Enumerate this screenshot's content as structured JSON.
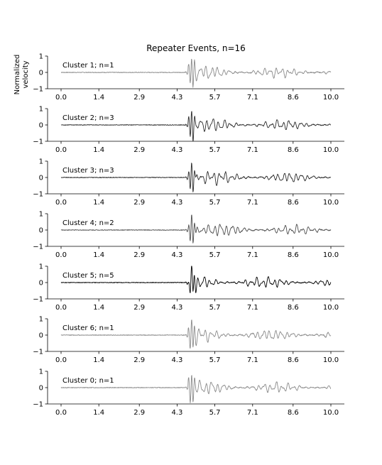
{
  "chart_data": {
    "type": "line",
    "title": "Repeater Events, n=16",
    "ylabel": [
      "Normalized",
      "velocity"
    ],
    "xlim": [
      -0.5,
      10.5
    ],
    "ylim": [
      -1,
      1
    ],
    "xticks": [
      0.0,
      1.4,
      2.9,
      4.3,
      5.7,
      7.1,
      8.6,
      10.0
    ],
    "xtick_labels": [
      "0.0",
      "1.4",
      "2.9",
      "4.3",
      "5.7",
      "7.1",
      "8.6",
      "10.0"
    ],
    "yticks": [
      -1,
      0,
      1
    ],
    "ytick_labels": [
      "−1",
      "0",
      "1"
    ],
    "grid": false,
    "onset_time": 4.7,
    "panels": [
      {
        "label": "Cluster 1; n=1",
        "cluster": 1,
        "n": 1,
        "color": "#8a8a8a"
      },
      {
        "label": "Cluster 2; n=3",
        "cluster": 2,
        "n": 3,
        "color": "#2a2a2a"
      },
      {
        "label": "Cluster 3; n=3",
        "cluster": 3,
        "n": 3,
        "color": "#2a2a2a"
      },
      {
        "label": "Cluster 4; n=2",
        "cluster": 4,
        "n": 2,
        "color": "#4d4d4d"
      },
      {
        "label": "Cluster 5; n=5",
        "cluster": 5,
        "n": 5,
        "color": "#000000"
      },
      {
        "label": "Cluster 6; n=1",
        "cluster": 6,
        "n": 1,
        "color": "#8a8a8a"
      },
      {
        "label": "Cluster 0; n=1",
        "cluster": 0,
        "n": 1,
        "color": "#8a8a8a"
      }
    ]
  }
}
